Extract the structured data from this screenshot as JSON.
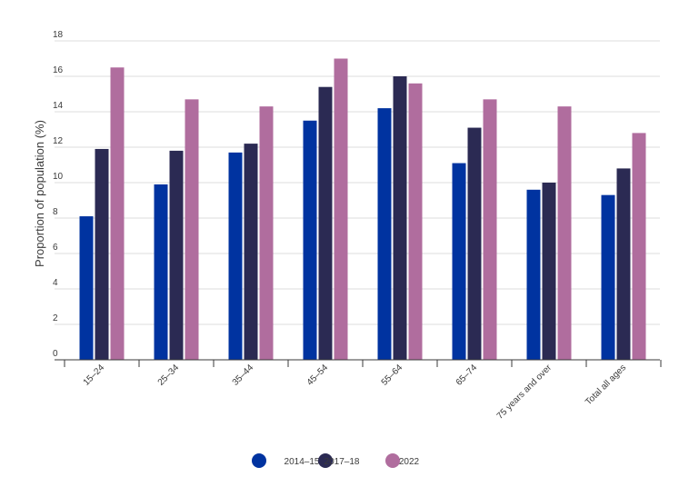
{
  "chart_data": {
    "type": "bar",
    "title": "",
    "xlabel": "",
    "ylabel": "Proportion of population (%)",
    "ylim": [
      0,
      18
    ],
    "yticks": [
      0,
      2,
      4,
      6,
      8,
      10,
      12,
      14,
      16,
      18
    ],
    "grid": true,
    "legend_position": "bottom-center",
    "categories": [
      "15–24",
      "25–34",
      "35–44",
      "45–54",
      "55–64",
      "65–74",
      "75 years and over",
      "Total all ages"
    ],
    "series": [
      {
        "name": "2014–15",
        "color": "#0033a0",
        "values": [
          8.1,
          9.9,
          11.7,
          13.5,
          14.2,
          11.1,
          9.6,
          9.3
        ]
      },
      {
        "name": "2017–18",
        "color": "#2b2a53",
        "values": [
          11.9,
          11.8,
          12.2,
          15.4,
          16.0,
          13.1,
          10.0,
          10.8
        ]
      },
      {
        "name": "2022",
        "color": "#b06d9e",
        "values": [
          16.5,
          14.7,
          14.3,
          17.0,
          15.6,
          14.7,
          14.3,
          12.8
        ]
      }
    ]
  }
}
